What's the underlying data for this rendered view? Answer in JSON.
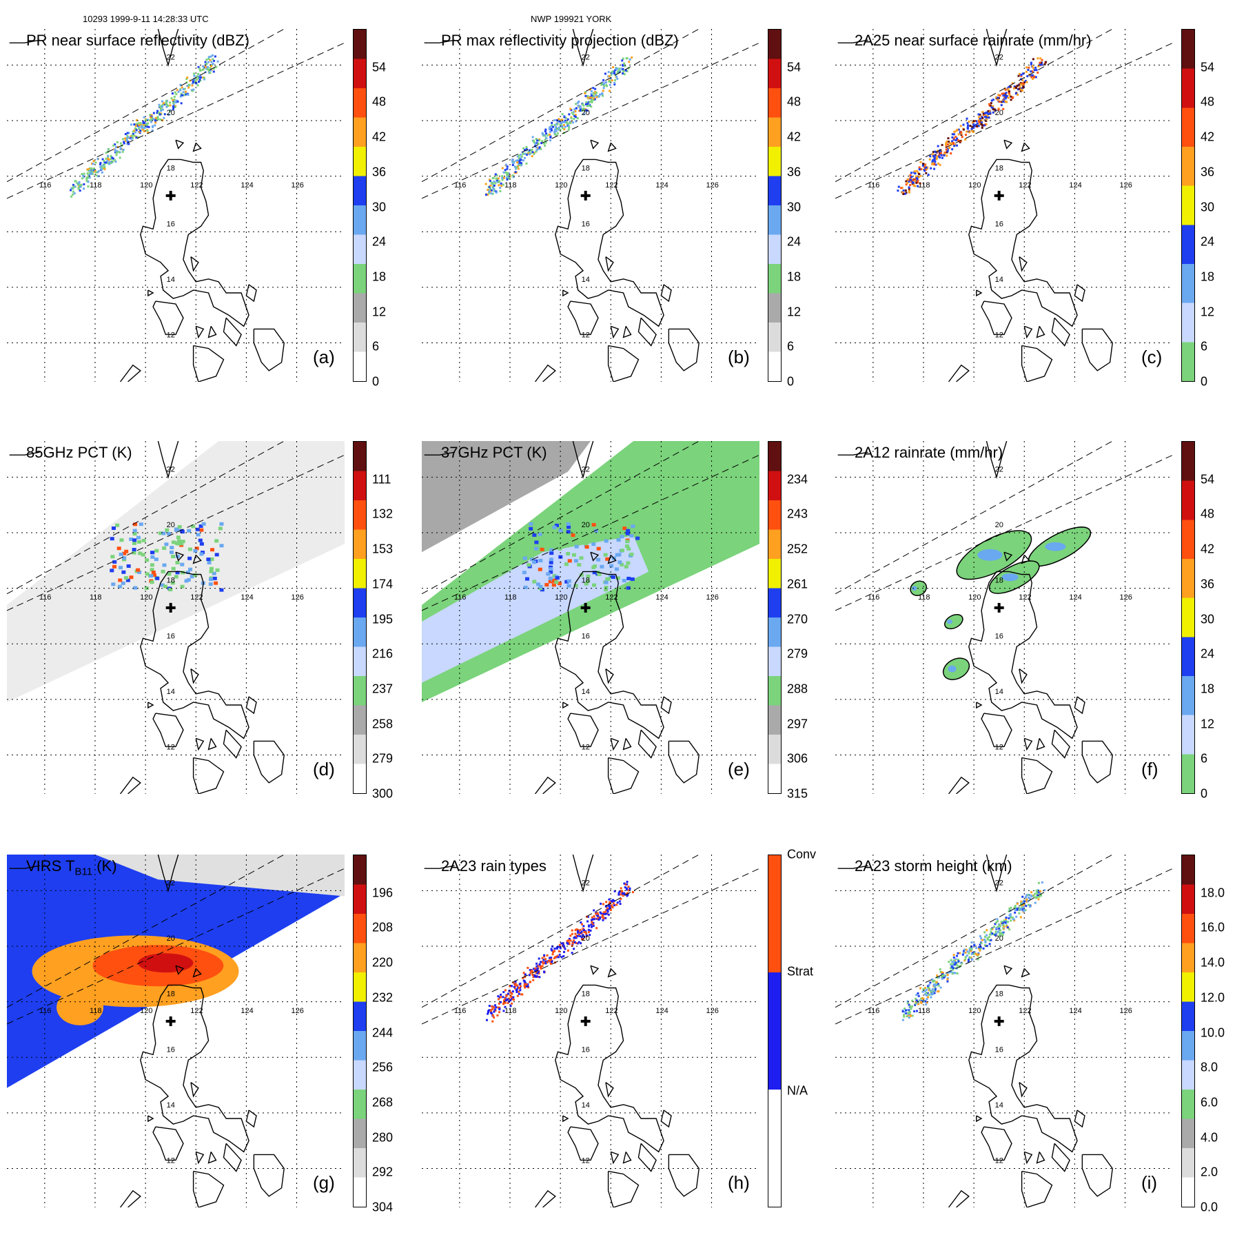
{
  "header": {
    "left": "10293 1999-9-11 14:28:33 UTC",
    "center": "NWP 199921 YORK"
  },
  "map": {
    "lon_labels": [
      "116",
      "118",
      "120",
      "122",
      "124",
      "126"
    ],
    "lat_labels": [
      "22",
      "20",
      "18",
      "16",
      "14",
      "12"
    ]
  },
  "panels": [
    {
      "title": "PR near surface reflectivity (dBZ)",
      "label": "(a)",
      "field": "swath",
      "colors": [
        "#ffffff",
        "#dcdcdc",
        "#aaaaaa",
        "#7bd37b",
        "#c8d8ff",
        "#6aa8f0",
        "#1e3ef0",
        "#f0f000",
        "#ffa020",
        "#ff5010",
        "#d01010",
        "#601010"
      ],
      "ticks": [
        "0",
        "6",
        "12",
        "18",
        "24",
        "30",
        "36",
        "42",
        "48",
        "54"
      ]
    },
    {
      "title": "PR max reflectivity projection (dBZ)",
      "label": "(b)",
      "field": "swath",
      "colors": [
        "#ffffff",
        "#dcdcdc",
        "#aaaaaa",
        "#7bd37b",
        "#c8d8ff",
        "#6aa8f0",
        "#1e3ef0",
        "#f0f000",
        "#ffa020",
        "#ff5010",
        "#d01010",
        "#601010"
      ],
      "ticks": [
        "0",
        "6",
        "12",
        "18",
        "24",
        "30",
        "36",
        "42",
        "48",
        "54"
      ]
    },
    {
      "title": "2A25 near surface rainrate (mm/hr)",
      "label": "(c)",
      "field": "swath",
      "colors": [
        "#7bd37b",
        "#c8d8ff",
        "#6aa8f0",
        "#1e3ef0",
        "#f0f000",
        "#ffa020",
        "#ff5010",
        "#d01010",
        "#601010"
      ],
      "ticks": [
        "0",
        "6",
        "12",
        "18",
        "24",
        "30",
        "36",
        "42",
        "48",
        "54"
      ]
    },
    {
      "title": "85GHz PCT (K)",
      "label": "(d)",
      "field": "tmi85",
      "colors": [
        "#ffffff",
        "#dcdcdc",
        "#aaaaaa",
        "#7bd37b",
        "#c8d8ff",
        "#6aa8f0",
        "#1e3ef0",
        "#f0f000",
        "#ffa020",
        "#ff5010",
        "#d01010",
        "#601010"
      ],
      "ticks": [
        "300",
        "279",
        "258",
        "237",
        "216",
        "195",
        "174",
        "153",
        "132",
        "111"
      ]
    },
    {
      "title": "37GHz PCT (K)",
      "label": "(e)",
      "field": "tmi37",
      "colors": [
        "#ffffff",
        "#dcdcdc",
        "#aaaaaa",
        "#7bd37b",
        "#c8d8ff",
        "#6aa8f0",
        "#1e3ef0",
        "#f0f000",
        "#ffa020",
        "#ff5010",
        "#d01010",
        "#601010"
      ],
      "ticks": [
        "315",
        "306",
        "297",
        "288",
        "279",
        "270",
        "261",
        "252",
        "243",
        "234"
      ]
    },
    {
      "title": "2A12 rainrate (mm/hr)",
      "label": "(f)",
      "field": "tmirain",
      "colors": [
        "#7bd37b",
        "#c8d8ff",
        "#6aa8f0",
        "#1e3ef0",
        "#f0f000",
        "#ffa020",
        "#ff5010",
        "#d01010",
        "#601010"
      ],
      "ticks": [
        "0",
        "6",
        "12",
        "18",
        "24",
        "30",
        "36",
        "42",
        "48",
        "54"
      ]
    },
    {
      "title": "VIRS T",
      "title_sub": "B11",
      "title_tail": " (K)",
      "label": "(g)",
      "field": "virs",
      "colors": [
        "#ffffff",
        "#dcdcdc",
        "#aaaaaa",
        "#7bd37b",
        "#c8d8ff",
        "#6aa8f0",
        "#1e3ef0",
        "#f0f000",
        "#ffa020",
        "#ff5010",
        "#d01010",
        "#601010"
      ],
      "ticks": [
        "304",
        "292",
        "280",
        "268",
        "256",
        "244",
        "232",
        "220",
        "208",
        "196"
      ]
    },
    {
      "title": "2A23 rain types",
      "label": "(h)",
      "field": "types",
      "colors": [
        "#ffffff",
        "#1e1ef0",
        "#ff5010"
      ],
      "ticks": [
        "N/A",
        "Strat",
        "Conv"
      ]
    },
    {
      "title": "2A23 storm height (km)",
      "label": "(i)",
      "field": "swath",
      "colors": [
        "#ffffff",
        "#dcdcdc",
        "#aaaaaa",
        "#7bd37b",
        "#c8d8ff",
        "#6aa8f0",
        "#1e3ef0",
        "#f0f000",
        "#ffa020",
        "#ff5010",
        "#d01010",
        "#601010"
      ],
      "ticks": [
        "0.0",
        "2.0",
        "4.0",
        "6.0",
        "8.0",
        "10.0",
        "12.0",
        "14.0",
        "16.0",
        "18.0"
      ]
    }
  ]
}
